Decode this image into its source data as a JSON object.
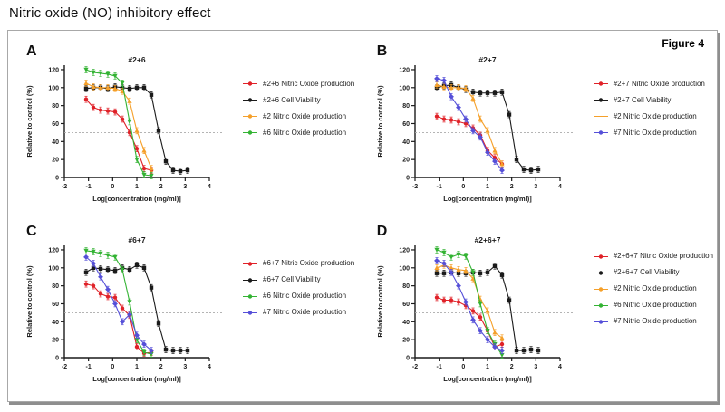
{
  "page_title": "Nitric oxide (NO) inhibitory effect",
  "figure": {
    "label": "Figure 4"
  },
  "axes": {
    "xlabel": "Log[concentration (mg/ml)]",
    "ylabel": "Relative to control (%)",
    "xticks": [
      -2,
      -1,
      0,
      1,
      2,
      3,
      4
    ],
    "yticks": [
      0,
      20,
      40,
      60,
      80,
      100,
      120
    ],
    "xlim": [
      -2,
      4
    ],
    "ylim": [
      0,
      125
    ],
    "reference_line_y": 50
  },
  "colors": {
    "red": "#e02128",
    "black": "#1a1a1a",
    "orange": "#f5a02a",
    "green": "#33b333",
    "blue": "#554fd8",
    "reference": "#aaaaaa",
    "axis": "#1a1a1a"
  },
  "chart_data": [
    {
      "panel_label": "A",
      "title": "#2+6",
      "type": "scatter",
      "series": [
        {
          "name": "#2+6 Nitric Oxide production",
          "color_key": "red",
          "marker": "circle",
          "x": [
            -1.1,
            -0.8,
            -0.5,
            -0.2,
            0.1,
            0.4,
            0.7,
            1.0,
            1.3,
            1.6
          ],
          "y": [
            87,
            78,
            75,
            74,
            73,
            65,
            50,
            32,
            10,
            8
          ]
        },
        {
          "name": "#2+6 Cell Viability",
          "color_key": "black",
          "marker": "square",
          "x": [
            -1.1,
            -0.8,
            -0.5,
            -0.2,
            0.1,
            0.4,
            0.7,
            1.0,
            1.3,
            1.6,
            1.9,
            2.2,
            2.5,
            2.8,
            3.1
          ],
          "y": [
            99,
            100,
            100,
            99,
            101,
            100,
            99,
            100,
            100,
            92,
            52,
            18,
            8,
            7,
            8
          ]
        },
        {
          "name": "#2 Nitric Oxide production",
          "color_key": "orange",
          "marker": "triangle-up",
          "x": [
            -1.1,
            -0.8,
            -0.5,
            -0.2,
            0.1,
            0.4,
            0.7,
            1.0,
            1.3,
            1.6
          ],
          "y": [
            105,
            101,
            100,
            100,
            99,
            96,
            85,
            52,
            30,
            10
          ]
        },
        {
          "name": "#6 Nitric Oxide production",
          "color_key": "green",
          "marker": "triangle-down",
          "x": [
            -1.1,
            -0.8,
            -0.5,
            -0.2,
            0.1,
            0.4,
            0.7,
            1.0,
            1.3,
            1.6
          ],
          "y": [
            120,
            117,
            116,
            115,
            113,
            105,
            62,
            20,
            3,
            2
          ]
        }
      ]
    },
    {
      "panel_label": "B",
      "title": "#2+7",
      "type": "scatter",
      "series": [
        {
          "name": "#2+7 Nitric Oxide production",
          "color_key": "red",
          "marker": "circle",
          "x": [
            -1.1,
            -0.8,
            -0.5,
            -0.2,
            0.1,
            0.4,
            0.7,
            1.0,
            1.3,
            1.6
          ],
          "y": [
            68,
            65,
            64,
            62,
            60,
            55,
            47,
            30,
            22,
            15
          ]
        },
        {
          "name": "#2+7 Cell Viability",
          "color_key": "black",
          "marker": "square",
          "x": [
            -1.1,
            -0.8,
            -0.5,
            -0.2,
            0.1,
            0.4,
            0.7,
            1.0,
            1.3,
            1.6,
            1.9,
            2.2,
            2.5,
            2.8,
            3.1
          ],
          "y": [
            100,
            102,
            103,
            100,
            98,
            95,
            94,
            94,
            94,
            95,
            70,
            20,
            9,
            8,
            9
          ]
        },
        {
          "name": "#2 Nitric Oxide production",
          "color_key": "orange",
          "marker": "triangle-up",
          "legend_marker": "line",
          "x": [
            -1.1,
            -0.8,
            -0.5,
            -0.2,
            0.1,
            0.4,
            0.7,
            1.0,
            1.3,
            1.6
          ],
          "y": [
            103,
            101,
            100,
            100,
            99,
            88,
            65,
            52,
            30,
            15
          ]
        },
        {
          "name": "#7 Nitric Oxide production",
          "color_key": "blue",
          "marker": "diamond",
          "x": [
            -1.1,
            -0.8,
            -0.5,
            -0.2,
            0.1,
            0.4,
            0.7,
            1.0,
            1.3,
            1.6
          ],
          "y": [
            110,
            108,
            90,
            78,
            65,
            52,
            45,
            28,
            18,
            8
          ]
        }
      ]
    },
    {
      "panel_label": "C",
      "title": "#6+7",
      "type": "scatter",
      "series": [
        {
          "name": "#6+7 Nitric Oxide production",
          "color_key": "red",
          "marker": "circle",
          "x": [
            -1.1,
            -0.8,
            -0.5,
            -0.2,
            0.1,
            0.4,
            0.7,
            1.0,
            1.3,
            1.6
          ],
          "y": [
            82,
            80,
            71,
            68,
            67,
            55,
            47,
            12,
            5,
            6
          ]
        },
        {
          "name": "#6+7 Cell Viability",
          "color_key": "black",
          "marker": "square",
          "x": [
            -1.1,
            -0.8,
            -0.5,
            -0.2,
            0.1,
            0.4,
            0.7,
            1.0,
            1.3,
            1.6,
            1.9,
            2.2,
            2.5,
            2.8,
            3.1
          ],
          "y": [
            95,
            100,
            99,
            98,
            97,
            100,
            98,
            103,
            100,
            78,
            38,
            9,
            8,
            8,
            8
          ]
        },
        {
          "name": "#6 Nitric Oxide production",
          "color_key": "green",
          "marker": "triangle-down",
          "x": [
            -1.1,
            -0.8,
            -0.5,
            -0.2,
            0.1,
            0.4,
            0.7,
            1.0,
            1.3,
            1.6
          ],
          "y": [
            119,
            118,
            116,
            114,
            112,
            98,
            62,
            20,
            6,
            4
          ]
        },
        {
          "name": "#7 Nitric Oxide production",
          "color_key": "blue",
          "marker": "diamond",
          "x": [
            -1.1,
            -0.8,
            -0.5,
            -0.2,
            0.1,
            0.4,
            0.7,
            1.0,
            1.3,
            1.6
          ],
          "y": [
            112,
            105,
            90,
            76,
            60,
            40,
            48,
            25,
            15,
            8
          ]
        }
      ]
    },
    {
      "panel_label": "D",
      "title": "#2+6+7",
      "type": "scatter",
      "series": [
        {
          "name": "#2+6+7 Nitric Oxide production",
          "color_key": "red",
          "marker": "circle",
          "x": [
            -1.1,
            -0.8,
            -0.5,
            -0.2,
            0.1,
            0.4,
            0.7,
            1.0,
            1.3,
            1.6
          ],
          "y": [
            67,
            64,
            64,
            62,
            58,
            52,
            45,
            30,
            12,
            15
          ]
        },
        {
          "name": "#2+6+7 Cell Viability",
          "color_key": "black",
          "marker": "square",
          "x": [
            -1.1,
            -0.8,
            -0.5,
            -0.2,
            0.1,
            0.4,
            0.7,
            1.0,
            1.3,
            1.6,
            1.9,
            2.2,
            2.5,
            2.8,
            3.1
          ],
          "y": [
            94,
            94,
            95,
            94,
            94,
            95,
            94,
            95,
            102,
            92,
            64,
            8,
            8,
            9,
            8
          ]
        },
        {
          "name": "#2 Nitric Oxide production",
          "color_key": "orange",
          "marker": "triangle-up",
          "x": [
            -1.1,
            -0.8,
            -0.5,
            -0.2,
            0.1,
            0.4,
            0.7,
            1.0,
            1.3,
            1.6
          ],
          "y": [
            100,
            103,
            100,
            98,
            97,
            88,
            65,
            52,
            28,
            22
          ]
        },
        {
          "name": "#6 Nitric Oxide production",
          "color_key": "green",
          "marker": "triangle-down",
          "x": [
            -1.1,
            -0.8,
            -0.5,
            -0.2,
            0.1,
            0.4,
            0.7,
            1.0,
            1.3,
            1.6
          ],
          "y": [
            120,
            117,
            112,
            115,
            113,
            95,
            60,
            30,
            15,
            3
          ]
        },
        {
          "name": "#7 Nitric Oxide production",
          "color_key": "blue",
          "marker": "diamond",
          "x": [
            -1.1,
            -0.8,
            -0.5,
            -0.2,
            0.1,
            0.4,
            0.7,
            1.0,
            1.3,
            1.6
          ],
          "y": [
            108,
            105,
            95,
            80,
            62,
            42,
            30,
            20,
            12,
            8
          ]
        }
      ]
    }
  ]
}
